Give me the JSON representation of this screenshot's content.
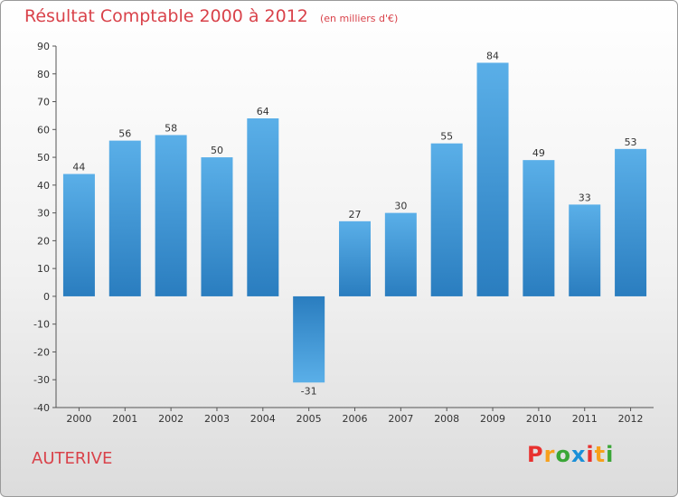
{
  "chart_data": {
    "type": "bar",
    "title": "Résultat Comptable 2000 à 2012",
    "subtitle": "(en milliers d'€)",
    "categories": [
      "2000",
      "2001",
      "2002",
      "2003",
      "2004",
      "2005",
      "2006",
      "2007",
      "2008",
      "2009",
      "2010",
      "2011",
      "2012"
    ],
    "values": [
      44,
      56,
      58,
      50,
      64,
      -31,
      27,
      30,
      55,
      84,
      49,
      33,
      53
    ],
    "ylim": [
      -40,
      90
    ],
    "yticks": [
      90,
      80,
      70,
      60,
      50,
      40,
      30,
      20,
      10,
      0,
      -10,
      -20,
      -30,
      -40
    ],
    "xlabel": "",
    "ylabel": "",
    "grid": false,
    "bar_color_top": "#5aafe8",
    "bar_color_bottom": "#2a7dbf"
  },
  "footer": {
    "commune": "AUTERIVE",
    "logo_letters": [
      "P",
      "r",
      "o",
      "x",
      "i",
      "t",
      "i"
    ],
    "logo_colors": [
      "#e8312f",
      "#f7a01b",
      "#3aa637",
      "#1a8fd8",
      "#e8312f",
      "#f7a01b",
      "#3aa637"
    ]
  }
}
